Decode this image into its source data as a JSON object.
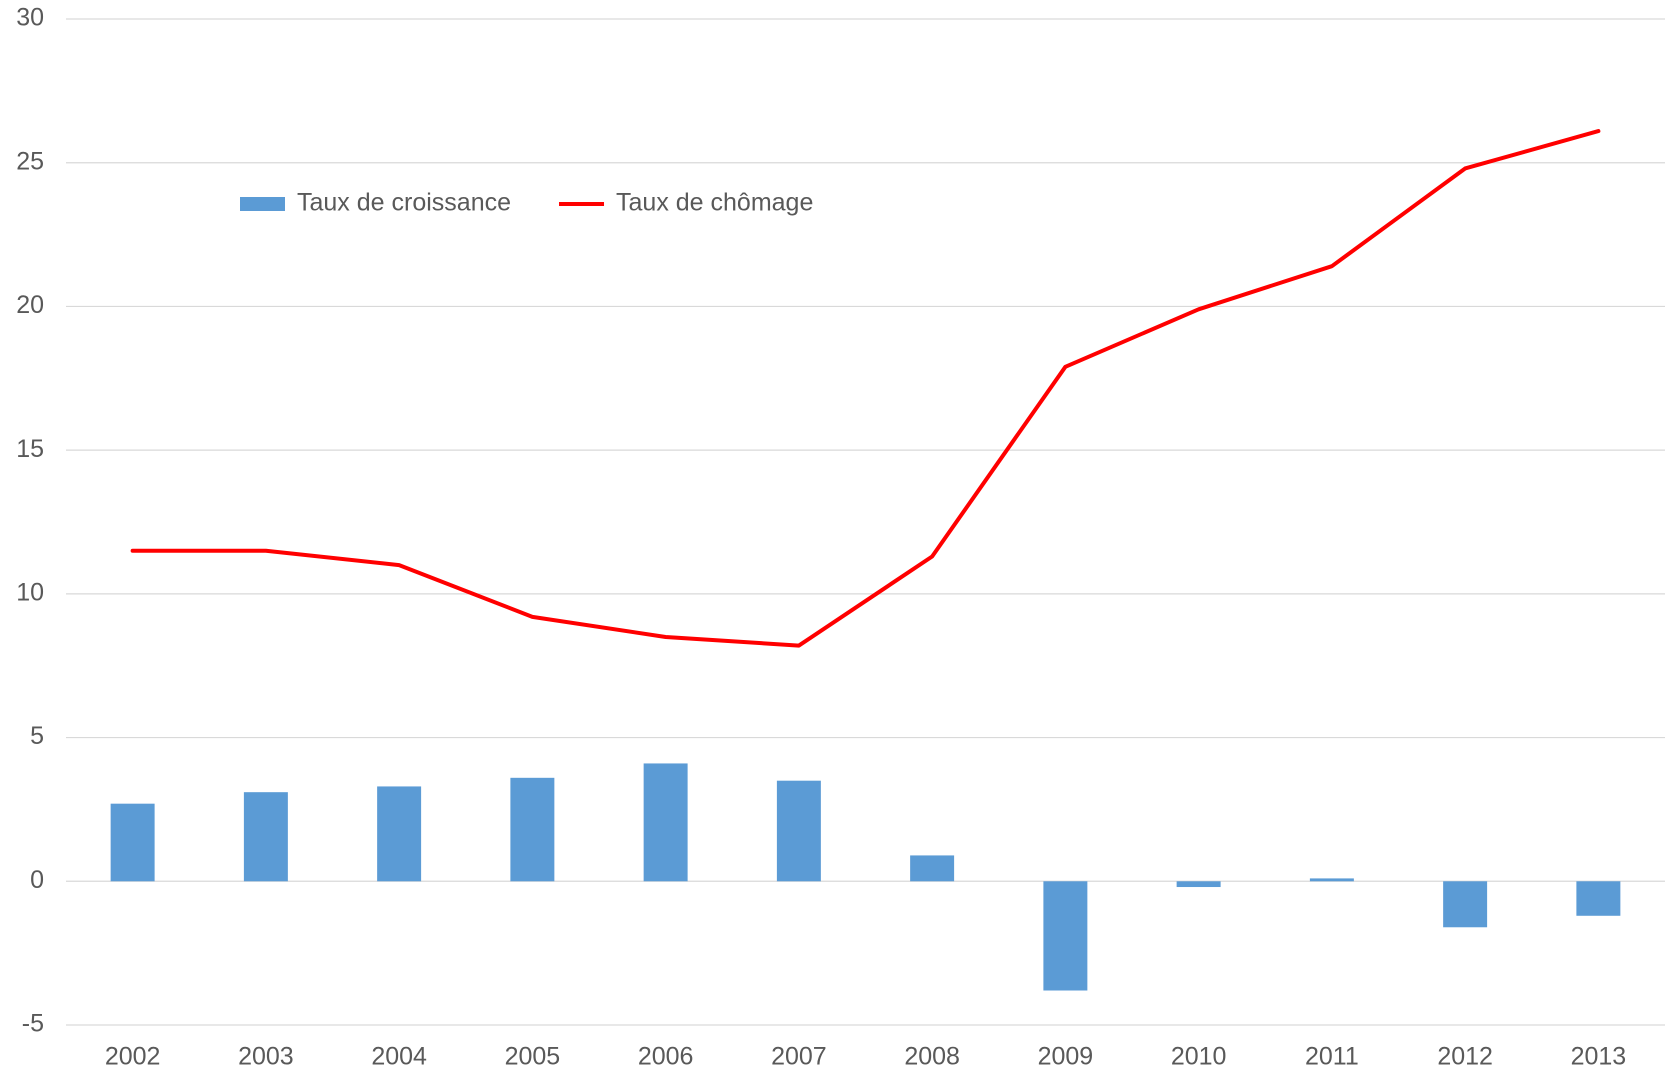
{
  "chart_data": {
    "type": "bar",
    "categories": [
      "2002",
      "2003",
      "2004",
      "2005",
      "2006",
      "2007",
      "2008",
      "2009",
      "2010",
      "2011",
      "2012",
      "2013"
    ],
    "series": [
      {
        "name": "Taux de croissance",
        "type": "bar",
        "color": "#5b9bd5",
        "values": [
          2.7,
          3.1,
          3.3,
          3.6,
          4.1,
          3.5,
          0.9,
          -3.8,
          -0.2,
          0.1,
          -1.6,
          -1.2
        ]
      },
      {
        "name": "Taux de chômage",
        "type": "line",
        "color": "#ff0000",
        "values": [
          11.5,
          11.5,
          11.0,
          9.2,
          8.5,
          8.2,
          11.3,
          17.9,
          19.9,
          21.4,
          24.8,
          26.1
        ]
      }
    ],
    "ylim": [
      -5,
      30
    ],
    "yticks": [
      -5,
      0,
      5,
      10,
      15,
      20,
      25,
      30
    ],
    "grid": true,
    "legend": "upper left"
  }
}
